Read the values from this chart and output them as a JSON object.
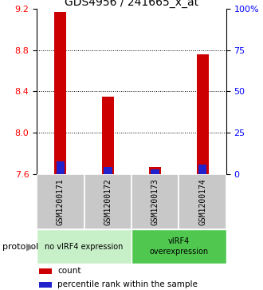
{
  "title": "GDS4956 / 241665_x_at",
  "samples": [
    "GSM1200171",
    "GSM1200172",
    "GSM1200173",
    "GSM1200174"
  ],
  "red_values": [
    9.17,
    8.35,
    7.665,
    8.76
  ],
  "blue_values": [
    0.077,
    0.042,
    0.03,
    0.055
  ],
  "ymin": 7.6,
  "ymax": 9.2,
  "yticks_left": [
    7.6,
    8.0,
    8.4,
    8.8,
    9.2
  ],
  "yticks_right": [
    0,
    25,
    50,
    75,
    100
  ],
  "bar_color_red": "#cc0000",
  "bar_color_blue": "#2222cc",
  "bar_width": 0.25,
  "blue_bar_width": 0.18,
  "bg_color": "#ffffff",
  "title_fontsize": 10,
  "tick_fontsize": 8,
  "legend_fontsize": 7.5,
  "sample_fontsize": 7,
  "proto_fontsize": 7,
  "gray_box_color": "#c8c8c8",
  "light_green": "#c8f0c8",
  "dark_green": "#50c850"
}
